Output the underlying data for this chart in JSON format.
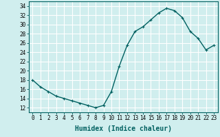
{
  "x": [
    0,
    1,
    2,
    3,
    4,
    5,
    6,
    7,
    8,
    9,
    10,
    11,
    12,
    13,
    14,
    15,
    16,
    17,
    18,
    19,
    20,
    21,
    22,
    23
  ],
  "y": [
    18,
    16.5,
    15.5,
    14.5,
    14,
    13.5,
    13,
    12.5,
    12,
    12.5,
    15.5,
    21,
    25.5,
    28.5,
    29.5,
    31,
    32.5,
    33.5,
    33,
    31.5,
    28.5,
    27,
    24.5,
    25.5
  ],
  "line_color": "#006060",
  "marker": "+",
  "marker_size": 3,
  "bg_color": "#d0eeee",
  "grid_color": "#ffffff",
  "xlabel": "Humidex (Indice chaleur)",
  "ylabel": "",
  "xlim": [
    -0.5,
    23.5
  ],
  "ylim": [
    11,
    35
  ],
  "yticks": [
    12,
    14,
    16,
    18,
    20,
    22,
    24,
    26,
    28,
    30,
    32,
    34
  ],
  "xticks": [
    0,
    1,
    2,
    3,
    4,
    5,
    6,
    7,
    8,
    9,
    10,
    11,
    12,
    13,
    14,
    15,
    16,
    17,
    18,
    19,
    20,
    21,
    22,
    23
  ],
  "tick_label_fontsize": 5.5,
  "xlabel_fontsize": 7,
  "line_width": 1.0
}
